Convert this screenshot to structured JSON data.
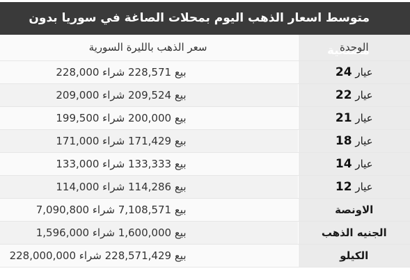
{
  "title": "متوسط اسعار الذهب اليوم بمحلات الصاغة في سوريا بدون مصنعية",
  "table": {
    "headers": {
      "unit": "الوحدة",
      "price": "سعر الذهب بالليرة السورية"
    },
    "rows": [
      {
        "unit_word": "عيار",
        "unit_num": "24",
        "unit_name": "",
        "price": "بيع 228,571 شراء 228,000"
      },
      {
        "unit_word": "عيار",
        "unit_num": "22",
        "unit_name": "",
        "price": "بيع 209,524 شراء 209,000"
      },
      {
        "unit_word": "عيار",
        "unit_num": "21",
        "unit_name": "",
        "price": "بيع 200,000 شراء 199,500"
      },
      {
        "unit_word": "عيار",
        "unit_num": "18",
        "unit_name": "",
        "price": "بيع 171,429 شراء 171,000"
      },
      {
        "unit_word": "عيار",
        "unit_num": "14",
        "unit_name": "",
        "price": "بيع 133,333 شراء 133,000"
      },
      {
        "unit_word": "عيار",
        "unit_num": "12",
        "unit_name": "",
        "price": "بيع 114,286 شراء 114,000"
      },
      {
        "unit_word": "",
        "unit_num": "",
        "unit_name": "الاونصة",
        "price": "بيع 7,108,571 شراء 7,090,800"
      },
      {
        "unit_word": "",
        "unit_num": "",
        "unit_name": "الجنيه الذهب",
        "price": "بيع 1,600,000 شراء 1,596,000"
      },
      {
        "unit_word": "",
        "unit_num": "",
        "unit_name": "الكيلو",
        "price": "بيع 228,571,429 شراء 228,000,000"
      }
    ]
  },
  "colors": {
    "title_bg": "#3a3a3a",
    "title_text": "#ffffff",
    "unit_col_bg": "#ebebeb",
    "price_col_bg": "#f7f7f7"
  }
}
